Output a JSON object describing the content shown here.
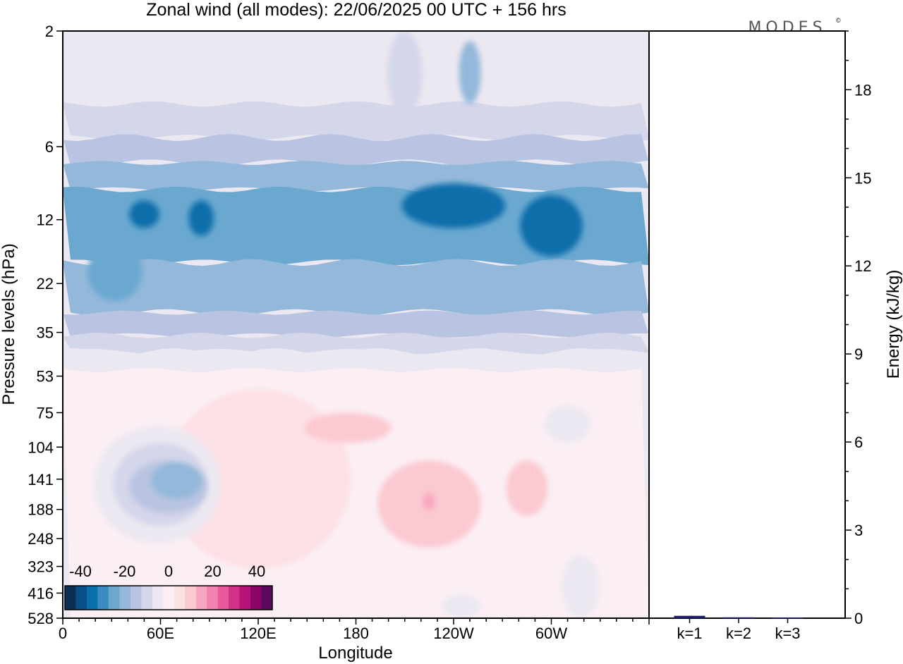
{
  "chart_data": {
    "type": "heatmap",
    "title": "Zonal wind (all modes):  22/06/2025  00 UTC  + 156 hrs",
    "logo_text": "MODES",
    "logo_mark": "©",
    "xlabel": "Longitude",
    "ylabel": "Pressure levels (hPa)",
    "x_ticks": [
      "0",
      "60E",
      "120E",
      "180",
      "120W",
      "60W"
    ],
    "x_tick_degrees": [
      0,
      60,
      120,
      180,
      240,
      300
    ],
    "x_range": [
      0,
      360
    ],
    "y_ticks": [
      "2",
      "6",
      "12",
      "22",
      "35",
      "53",
      "75",
      "104",
      "141",
      "188",
      "248",
      "323",
      "416",
      "528"
    ],
    "colorbar": {
      "tick_labels": [
        "-40",
        "-20",
        "0",
        "20",
        "40"
      ],
      "colors": [
        "#0b2e55",
        "#0a4f86",
        "#0a6eaa",
        "#3b8dc1",
        "#6aa8d0",
        "#93b8da",
        "#b8c4e1",
        "#d4d6ea",
        "#ece8f1",
        "#fbeff4",
        "#fde0e4",
        "#fbc9d1",
        "#f6a8c0",
        "#f283b0",
        "#e9599e",
        "#d23289",
        "#b5127a",
        "#8c0568",
        "#5a0a5c"
      ]
    },
    "bands": [
      {
        "p_top": 2,
        "p_bot": 4,
        "value": -4
      },
      {
        "p_top": 4,
        "p_bot": 5.5,
        "value": -8
      },
      {
        "p_top": 5.5,
        "p_bot": 7,
        "value": -17
      },
      {
        "p_top": 7,
        "p_bot": 9,
        "value": -22
      },
      {
        "p_top": 9,
        "p_bot": 18,
        "value": -27
      },
      {
        "p_top": 18,
        "p_bot": 29,
        "value": -22
      },
      {
        "p_top": 29,
        "p_bot": 36,
        "value": -17
      },
      {
        "p_top": 36,
        "p_bot": 42,
        "value": -12
      },
      {
        "p_top": 42,
        "p_bot": 50,
        "value": -7
      },
      {
        "p_top": 50,
        "p_bot": 528,
        "value": -2
      }
    ],
    "blobs": [
      {
        "lon": 210,
        "p_top": 2,
        "p_bot": 4.5,
        "lon_w": 18,
        "value": -12
      },
      {
        "lon": 250,
        "p_top": 2.2,
        "p_bot": 4,
        "lon_w": 10,
        "value": -22
      },
      {
        "lon": 240,
        "p_top": 8.5,
        "p_bot": 13,
        "lon_w": 60,
        "value": -33
      },
      {
        "lon": 300,
        "p_top": 9.5,
        "p_bot": 17,
        "lon_w": 35,
        "value": -33
      },
      {
        "lon": 50,
        "p_top": 10,
        "p_bot": 13,
        "lon_w": 15,
        "value": -33
      },
      {
        "lon": 85,
        "p_top": 10,
        "p_bot": 14,
        "lon_w": 12,
        "value": -33
      },
      {
        "lon": 32,
        "p_top": 15,
        "p_bot": 26,
        "lon_w": 30,
        "value": -27
      },
      {
        "lon": 120,
        "p_top": 60,
        "p_bot": 330,
        "lon_w": 110,
        "value": 3
      },
      {
        "lon": 175,
        "p_top": 75,
        "p_bot": 100,
        "lon_w": 50,
        "value": 8
      },
      {
        "lon": 225,
        "p_top": 118,
        "p_bot": 270,
        "lon_w": 60,
        "value": 8
      },
      {
        "lon": 285,
        "p_top": 118,
        "p_bot": 200,
        "lon_w": 22,
        "value": 8
      },
      {
        "lon": 225,
        "p_top": 160,
        "p_bot": 190,
        "lon_w": 4,
        "value": 13
      },
      {
        "lon": 58,
        "p_top": 85,
        "p_bot": 260,
        "lon_w": 75,
        "value": -7
      },
      {
        "lon": 60,
        "p_top": 100,
        "p_bot": 220,
        "lon_w": 55,
        "value": -12
      },
      {
        "lon": 65,
        "p_top": 118,
        "p_bot": 195,
        "lon_w": 45,
        "value": -17
      },
      {
        "lon": 70,
        "p_top": 120,
        "p_bot": 170,
        "lon_w": 28,
        "value": -22
      },
      {
        "lon": 310,
        "p_top": 70,
        "p_bot": 100,
        "lon_w": 25,
        "value": -7
      },
      {
        "lon": 318,
        "p_top": 290,
        "p_bot": 528,
        "lon_w": 20,
        "value": -7
      },
      {
        "lon": 245,
        "p_top": 420,
        "p_bot": 528,
        "lon_w": 20,
        "value": -7
      }
    ],
    "bar_chart": {
      "ylabel": "Energy (kJ/kg)",
      "categories": [
        "k=1",
        "k=2",
        "k=3"
      ],
      "values": [
        0.08,
        0.03,
        0.02
      ],
      "ylim": [
        0,
        20
      ],
      "y_ticks": [
        "0",
        "3",
        "6",
        "9",
        "12",
        "15",
        "18"
      ],
      "bar_color": "#1a1a6e"
    }
  }
}
